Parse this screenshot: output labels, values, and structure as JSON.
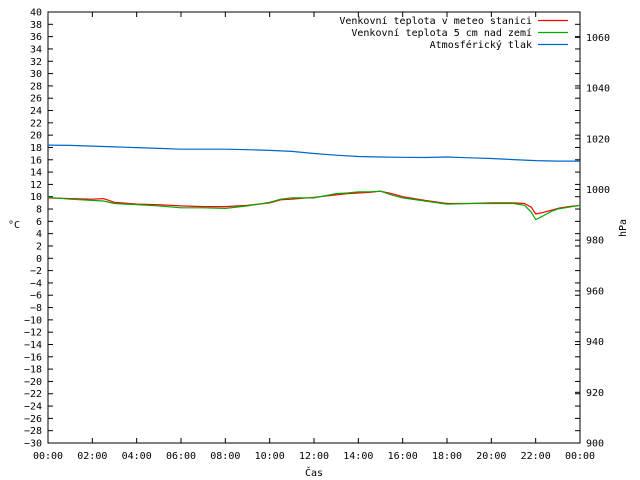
{
  "chart_data": {
    "type": "line",
    "xlabel": "Čas",
    "ylabel_left": "°C",
    "ylabel_right": "hPa",
    "x_ticks": [
      "00:00",
      "02:00",
      "04:00",
      "06:00",
      "08:00",
      "10:00",
      "12:00",
      "14:00",
      "16:00",
      "18:00",
      "20:00",
      "22:00",
      "00:00"
    ],
    "x_range_hours": [
      0,
      24
    ],
    "ylim_left": [
      -30,
      40
    ],
    "ytick_step_left": 2,
    "ylim_right": [
      900,
      1070
    ],
    "yticks_right": [
      900,
      920,
      940,
      960,
      980,
      1000,
      1020,
      1040,
      1060
    ],
    "grid": false,
    "legend_position": "top-right",
    "series": [
      {
        "name": "Venkovní teplota v meteo stanici",
        "color": "#ff0000",
        "axis": "left",
        "x": [
          0,
          1,
          2,
          2.5,
          3,
          4,
          5,
          6,
          7,
          8,
          9,
          10,
          10.5,
          11,
          12,
          13,
          13.5,
          14,
          14.5,
          15,
          15.5,
          16,
          17,
          18,
          19,
          20,
          21,
          21.5,
          21.8,
          22,
          22.3,
          22.7,
          23,
          23.5,
          24
        ],
        "y": [
          9.8,
          9.7,
          9.6,
          9.7,
          9.1,
          8.8,
          8.7,
          8.5,
          8.4,
          8.4,
          8.6,
          9.0,
          9.5,
          9.6,
          9.9,
          10.3,
          10.5,
          10.6,
          10.7,
          10.9,
          10.5,
          10.0,
          9.4,
          8.9,
          8.9,
          9.0,
          9.0,
          8.9,
          8.3,
          7.2,
          7.4,
          7.8,
          8.1,
          8.4,
          8.6
        ]
      },
      {
        "name": "Venkovní teplota 5 cm nad zemí",
        "color": "#00aa00",
        "axis": "left",
        "x": [
          0,
          1,
          2,
          2.5,
          3,
          4,
          5,
          6,
          7,
          8,
          9,
          10,
          10.5,
          11,
          12,
          13,
          13.5,
          14,
          14.5,
          15,
          15.5,
          16,
          17,
          18,
          19,
          20,
          21,
          21.5,
          21.8,
          22,
          22.3,
          22.7,
          23,
          23.5,
          24
        ],
        "y": [
          9.9,
          9.6,
          9.4,
          9.3,
          8.9,
          8.7,
          8.5,
          8.2,
          8.2,
          8.1,
          8.5,
          9.1,
          9.6,
          9.8,
          9.8,
          10.5,
          10.6,
          10.8,
          10.8,
          10.9,
          10.3,
          9.8,
          9.3,
          8.8,
          8.9,
          8.9,
          8.9,
          8.6,
          7.5,
          6.3,
          6.8,
          7.6,
          8.0,
          8.3,
          8.6
        ]
      },
      {
        "name": "Atmosférický tlak",
        "color": "#0066cc",
        "axis": "right",
        "x": [
          0,
          1,
          2,
          3,
          4,
          5,
          6,
          7,
          8,
          9,
          10,
          11,
          12,
          13,
          14,
          15,
          16,
          17,
          18,
          19,
          20,
          21,
          22,
          23,
          24
        ],
        "y": [
          1017.5,
          1017.4,
          1017.1,
          1016.8,
          1016.5,
          1016.2,
          1015.9,
          1015.9,
          1015.9,
          1015.7,
          1015.4,
          1015.0,
          1014.2,
          1013.5,
          1013.0,
          1012.8,
          1012.7,
          1012.6,
          1012.8,
          1012.5,
          1012.2,
          1011.8,
          1011.4,
          1011.2,
          1011.2
        ]
      }
    ]
  }
}
